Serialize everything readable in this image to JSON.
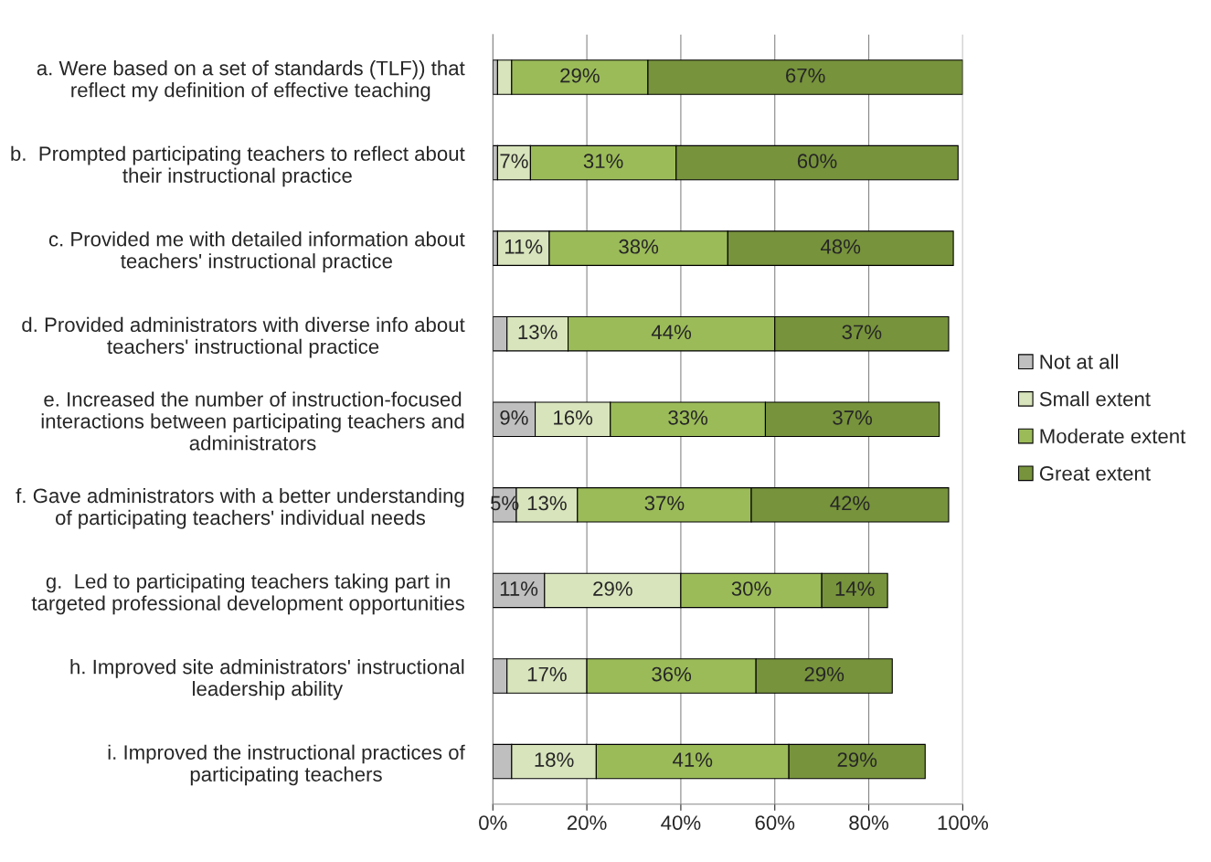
{
  "chart_data": {
    "type": "bar",
    "orientation": "horizontal",
    "stacked": true,
    "categories": [
      "a. Were based on a set of standards (TLF)) that\nreflect my definition of effective teaching",
      "b.  Prompted participating teachers to reflect about\ntheir instructional practice",
      "c. Provided me with detailed information about\nteachers' instructional practice",
      "d. Provided administrators with diverse info about\nteachers' instructional practice",
      "e. Increased the number of instruction-focused\ninteractions between participating teachers and\nadministrators",
      "f. Gave administrators with a better understanding\nof participating teachers' individual needs",
      "g.  Led to participating teachers taking part in\ntargeted professional development opportunities",
      "h. Improved site administrators' instructional\nleadership ability",
      "i. Improved the instructional practices of\nparticipating teachers"
    ],
    "series": [
      {
        "name": "Not at all",
        "color": "#bfbfbf",
        "values": [
          1,
          1,
          1,
          3,
          9,
          5,
          11,
          3,
          4
        ],
        "value_labels": [
          null,
          null,
          null,
          null,
          "9%",
          "5%",
          "11%",
          null,
          null
        ]
      },
      {
        "name": "Small extent",
        "color": "#d8e4bc",
        "values": [
          3,
          7,
          11,
          13,
          16,
          13,
          29,
          17,
          18
        ],
        "value_labels": [
          null,
          "7%",
          "11%",
          "13%",
          "16%",
          "13%",
          "29%",
          "17%",
          "18%"
        ]
      },
      {
        "name": "Moderate extent",
        "color": "#9bbb59",
        "values": [
          29,
          31,
          38,
          44,
          33,
          37,
          30,
          36,
          41
        ],
        "value_labels": [
          "29%",
          "31%",
          "38%",
          "44%",
          "33%",
          "37%",
          "30%",
          "36%",
          "41%"
        ]
      },
      {
        "name": "Great extent",
        "color": "#77933c",
        "values": [
          67,
          60,
          48,
          37,
          37,
          42,
          14,
          29,
          29
        ],
        "value_labels": [
          "67%",
          "60%",
          "48%",
          "37%",
          "37%",
          "42%",
          "14%",
          "29%",
          "29%"
        ]
      }
    ],
    "xlim": [
      0,
      100
    ],
    "xticks": [
      {
        "value": 0,
        "label": "0%"
      },
      {
        "value": 20,
        "label": "20%"
      },
      {
        "value": 40,
        "label": "40%"
      },
      {
        "value": 60,
        "label": "60%"
      },
      {
        "value": 80,
        "label": "80%"
      },
      {
        "value": 100,
        "label": "100%"
      }
    ],
    "grid": "x",
    "legend": "right"
  }
}
